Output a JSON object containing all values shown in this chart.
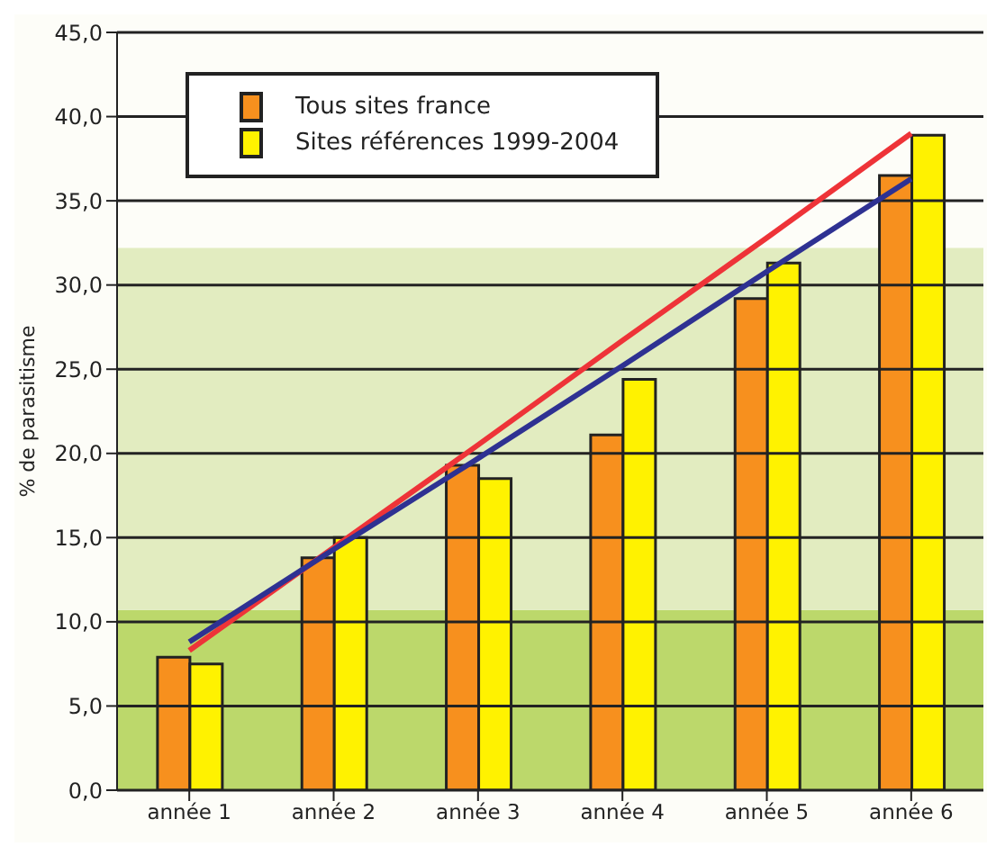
{
  "chart_data": {
    "type": "bar",
    "ylabel": "% de parasitisme",
    "categories": [
      "année 1",
      "année 2",
      "année 3",
      "année 4",
      "année 5",
      "année 6"
    ],
    "series": [
      {
        "name": "Tous sites france",
        "color": "#f7901e",
        "values": [
          7.9,
          13.8,
          19.3,
          21.1,
          29.2,
          36.5
        ]
      },
      {
        "name": "Sites références 1999-2004",
        "color": "#fff200",
        "values": [
          7.5,
          15.0,
          18.5,
          24.4,
          31.3,
          38.9
        ]
      },
      {
        "type": "line",
        "color": "#ee3338",
        "values": [
          8.3,
          14.4,
          20.5,
          26.7,
          32.8,
          39.0
        ]
      },
      {
        "type": "line",
        "color": "#2e3192",
        "values": [
          8.8,
          14.3,
          19.7,
          25.2,
          30.8,
          36.3
        ]
      }
    ],
    "ylim": [
      0,
      45
    ],
    "yticks": [
      {
        "value": 0,
        "label": "0,0"
      },
      {
        "value": 5,
        "label": "5,0"
      },
      {
        "value": 10,
        "label": "10,0"
      },
      {
        "value": 15,
        "label": "15,0"
      },
      {
        "value": 20,
        "label": "20,0"
      },
      {
        "value": 25,
        "label": "25,0"
      },
      {
        "value": 30,
        "label": "30,0"
      },
      {
        "value": 35,
        "label": "35,0"
      },
      {
        "value": 40,
        "label": "40,0"
      },
      {
        "value": 45,
        "label": "45,0"
      }
    ],
    "bands": [
      {
        "axis": "y",
        "from": 0,
        "to": 10.7,
        "color": "#bcd86b"
      },
      {
        "axis": "y",
        "from": 10.7,
        "to": 32.2,
        "color": "#e2ecc0"
      }
    ],
    "grid": "y",
    "legend": "top left",
    "marker": "none",
    "line_style": "solid"
  }
}
